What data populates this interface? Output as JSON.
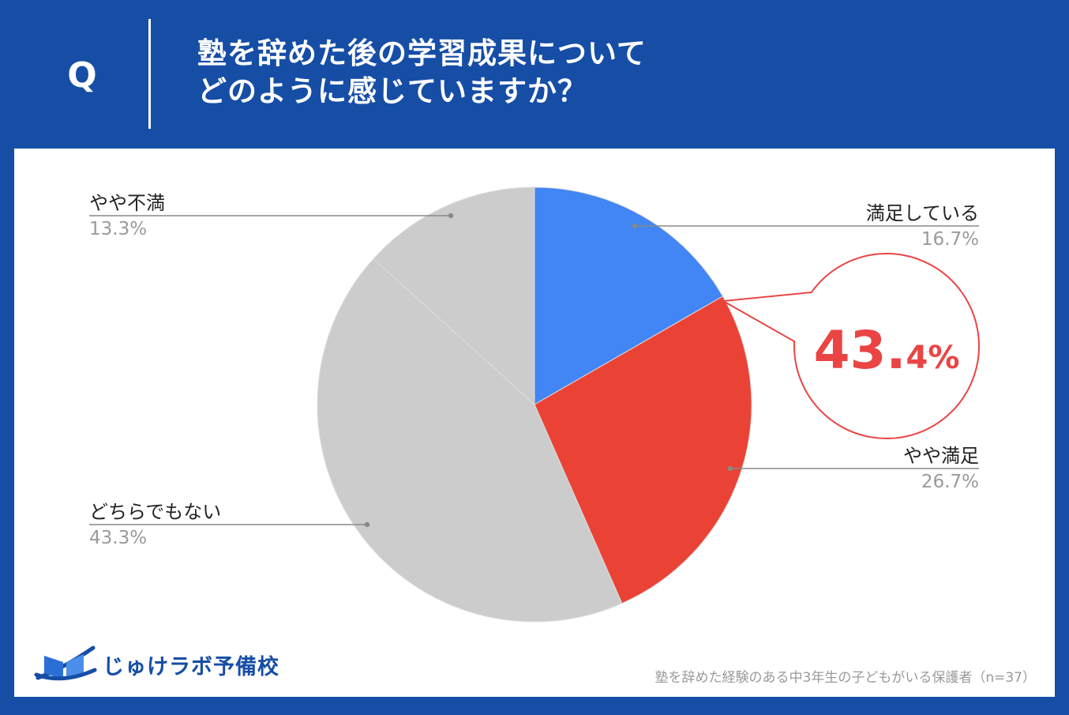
{
  "question": {
    "marker": "Q",
    "line1": "塾を辞めた後の学習成果について",
    "line2": "どのように感じていますか？"
  },
  "colors": {
    "background": "#164ea6",
    "satisfied": "#4285f4",
    "somewhat_satisfied": "#ea4335",
    "neutral": "#cccccc",
    "somewhat_dissatisfied": "#cccccc",
    "callout": "#ea4444"
  },
  "callout": {
    "value": "43.",
    "decimal": "4%"
  },
  "logo": {
    "text": "じゅけラボ予備校",
    "icon": "open-book-icon"
  },
  "footnote": "塾を辞めた経験のある中3年生の子どもがいる保護者（n=37）",
  "chart_data": {
    "type": "pie",
    "start": "12 o'clock, clockwise",
    "slices": [
      {
        "label": "満足している",
        "value": 16.7,
        "value_label": "16.7%",
        "color": "#4285f4"
      },
      {
        "label": "やや満足",
        "value": 26.7,
        "value_label": "26.7%",
        "color": "#ea4335"
      },
      {
        "label": "どちらでもない",
        "value": 43.3,
        "value_label": "43.3%",
        "color": "#cccccc"
      },
      {
        "label": "やや不満",
        "value": 13.3,
        "value_label": "13.3%",
        "color": "#cccccc"
      }
    ]
  }
}
